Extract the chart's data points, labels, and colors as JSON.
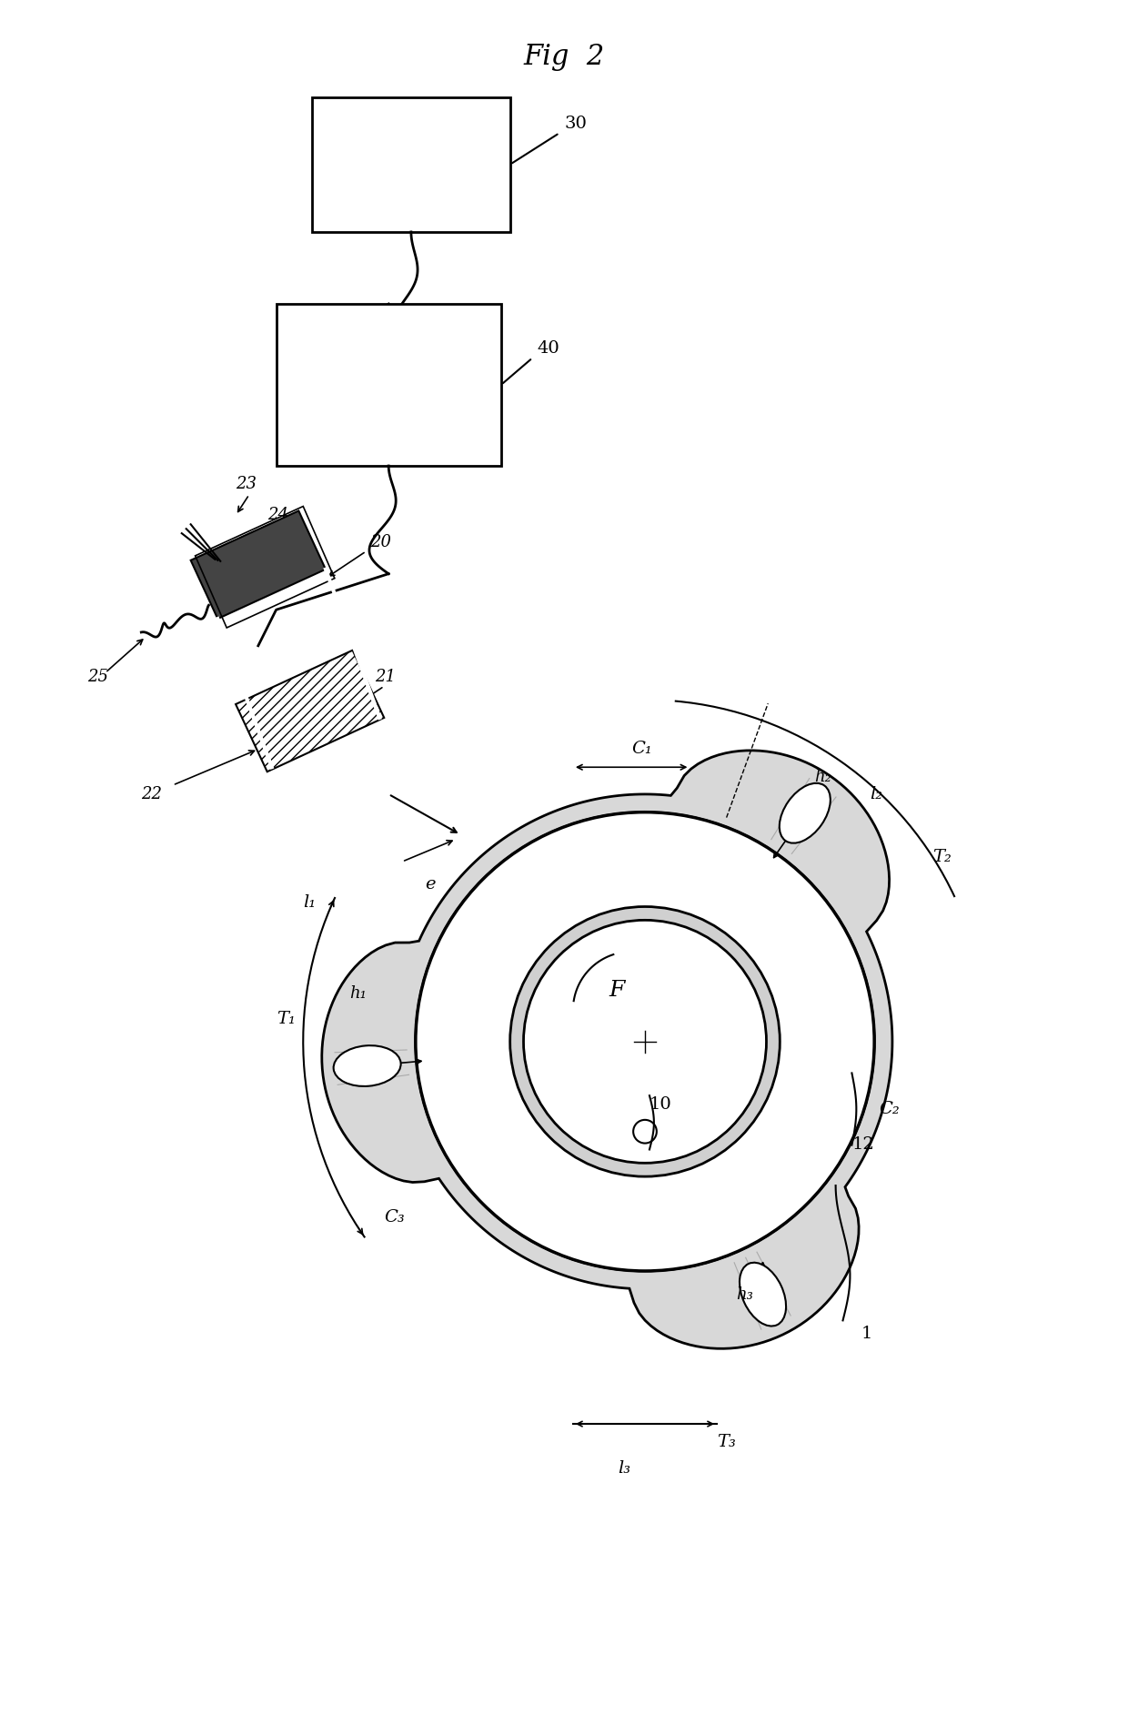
{
  "title": "Fig  2",
  "bg_color": "#ffffff",
  "line_color": "#000000",
  "fig_width": 12.4,
  "fig_height": 19.07,
  "labels": {
    "fig_title": "Fig  2",
    "box30": "30",
    "box40": "40",
    "label20": "20",
    "label21": "21",
    "label22": "22",
    "label23": "23",
    "label24": "24",
    "label25": "25",
    "label_e": "e",
    "label10": "10",
    "label12": "12",
    "label_F": "F",
    "label_C1": "C₁",
    "label_C2": "C₂",
    "label_C3": "C₃",
    "label_h1": "h₁",
    "label_h2": "h₂",
    "label_h3": "h₃",
    "label_l1": "l₁",
    "label_l2": "l₂",
    "label_l3": "l₃",
    "label_T1": "T₁",
    "label_T2": "T₂",
    "label_T3": "T₃",
    "label1": "1"
  }
}
